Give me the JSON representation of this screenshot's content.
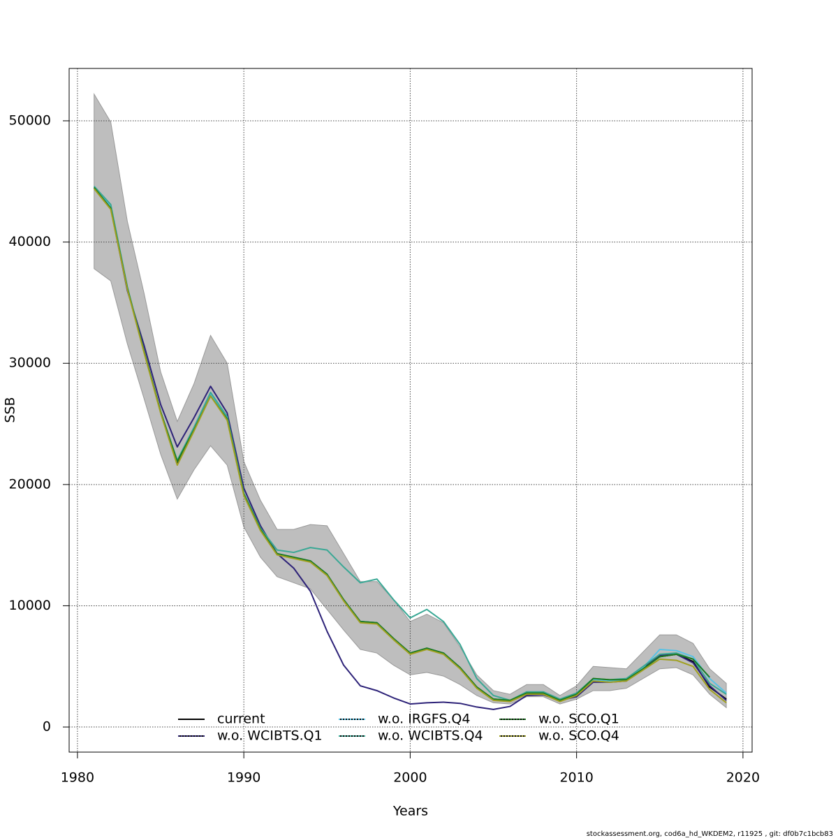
{
  "chart_data": {
    "type": "line",
    "x_label": "Years",
    "y_label": "SSB",
    "footnote": "stockassessment.org, cod6a_hd_WKDEM2, r11925 , git: df0b7c1bcb83",
    "xlim": [
      1979.5,
      2020.55
    ],
    "ylim": [
      -2070,
      54320
    ],
    "xticks": [
      1980,
      1990,
      2000,
      2010,
      2020
    ],
    "yticks": [
      0,
      10000,
      20000,
      30000,
      40000,
      50000
    ],
    "grid": true,
    "legend_position": "bottom",
    "x": [
      1981,
      1982,
      1983,
      1984,
      1985,
      1986,
      1987,
      1988,
      1989,
      1990,
      1991,
      1992,
      1993,
      1994,
      1995,
      1996,
      1997,
      1998,
      1999,
      2000,
      2001,
      2002,
      2003,
      2004,
      2005,
      2006,
      2007,
      2008,
      2009,
      2010,
      2011,
      2012,
      2013,
      2014,
      2015,
      2016,
      2017,
      2018,
      2019
    ],
    "band": {
      "color": "#bebebe",
      "upper": [
        52200,
        49900,
        41700,
        35800,
        29300,
        25200,
        28300,
        32300,
        30000,
        21900,
        18700,
        16300,
        16300,
        16700,
        16600,
        14300,
        12000,
        12000,
        10500,
        8700,
        9300,
        8600,
        6600,
        4300,
        3000,
        2700,
        3500,
        3500,
        2600,
        3400,
        5000,
        4900,
        4800,
        6200,
        7600,
        7600,
        6900,
        4800,
        3600
      ],
      "lower": [
        37800,
        36800,
        31600,
        27100,
        22500,
        18800,
        21200,
        23200,
        21600,
        16500,
        14000,
        12400,
        11900,
        11400,
        9700,
        8000,
        6400,
        6100,
        5100,
        4300,
        4500,
        4200,
        3500,
        2600,
        2000,
        1900,
        2500,
        2500,
        1900,
        2300,
        3000,
        3000,
        3200,
        4000,
        4800,
        4900,
        4300,
        2700,
        1600
      ]
    },
    "series": [
      {
        "name": "current",
        "color": "#000000",
        "values": [
          44500,
          42800,
          36200,
          31000,
          26000,
          21800,
          24500,
          27400,
          25400,
          19200,
          16300,
          14300,
          14000,
          13700,
          12600,
          10500,
          8700,
          8600,
          7300,
          6100,
          6500,
          6100,
          4900,
          3300,
          2300,
          2200,
          2800,
          2800,
          2200,
          2700,
          3900,
          3800,
          3900,
          4800,
          5800,
          6000,
          5400,
          3300,
          2300
        ]
      },
      {
        "name": "w.o. WCIBTS.Q1",
        "color": "#2d2278",
        "values": [
          44500,
          42800,
          36000,
          31500,
          26600,
          23100,
          25500,
          28100,
          25900,
          19700,
          16600,
          14300,
          13100,
          11200,
          7900,
          5100,
          3400,
          3000,
          2400,
          1900,
          2000,
          2050,
          1950,
          1650,
          1450,
          1700,
          2600,
          2650,
          2200,
          2500,
          3700,
          3700,
          3800,
          4900,
          5900,
          6000,
          5300,
          3400,
          2200
        ]
      },
      {
        "name": "w.o. IRGFS.Q4",
        "color": "#56c2e6",
        "values": [
          44600,
          42900,
          36200,
          31000,
          26000,
          21900,
          24600,
          27500,
          25500,
          19200,
          16300,
          14300,
          14000,
          13700,
          12600,
          10500,
          8700,
          8600,
          7300,
          6100,
          6500,
          6100,
          4900,
          3300,
          2300,
          2200,
          2800,
          2800,
          2200,
          2700,
          3900,
          3800,
          3900,
          4900,
          6400,
          6300,
          5800,
          4000,
          2800
        ]
      },
      {
        "name": "w.o. WCIBTS.Q4",
        "color": "#3aa895",
        "values": [
          44600,
          43100,
          36300,
          31000,
          26000,
          22000,
          24700,
          27600,
          25600,
          19300,
          16400,
          14600,
          14400,
          14800,
          14600,
          13200,
          11900,
          12200,
          10500,
          9000,
          9700,
          8700,
          6800,
          4000,
          2600,
          2200,
          2900,
          2900,
          2300,
          2800,
          4000,
          3900,
          4000,
          5000,
          6000,
          6100,
          5600,
          3600,
          2700
        ]
      },
      {
        "name": "w.o. SCO.Q1",
        "color": "#1c7a20",
        "values": [
          44500,
          42800,
          36200,
          31000,
          26000,
          21900,
          24500,
          27300,
          25400,
          19200,
          16300,
          14300,
          14000,
          13700,
          12600,
          10500,
          8700,
          8600,
          7300,
          6100,
          6500,
          6100,
          4900,
          3300,
          2300,
          2200,
          2800,
          2800,
          2200,
          2700,
          4000,
          3900,
          3900,
          4800,
          5800,
          6000,
          5600,
          4100,
          null
        ]
      },
      {
        "name": "w.o. SCO.Q4",
        "color": "#a0a020",
        "values": [
          44400,
          42700,
          36100,
          30900,
          25900,
          21600,
          24400,
          27300,
          25300,
          19100,
          16200,
          14200,
          13900,
          13600,
          12500,
          10400,
          8600,
          8500,
          7200,
          6000,
          6400,
          6000,
          4800,
          3200,
          2200,
          2100,
          2700,
          2700,
          2100,
          2600,
          3800,
          3700,
          3800,
          4700,
          5600,
          5500,
          5000,
          3100,
          2000
        ]
      }
    ]
  }
}
